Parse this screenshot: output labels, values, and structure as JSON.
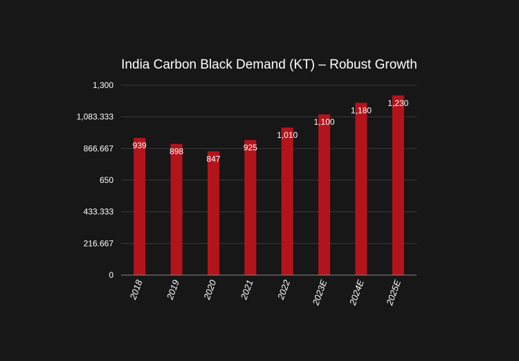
{
  "chart_data": {
    "type": "bar",
    "title": "India Carbon Black Demand (KT) – Robust Growth",
    "categories": [
      "2018",
      "2019",
      "2020",
      "2021",
      "2022",
      "2023E",
      "2024E",
      "2025E"
    ],
    "values": [
      939,
      898,
      847,
      925,
      1010,
      1100,
      1180,
      1230
    ],
    "data_labels": [
      "939",
      "898",
      "847",
      "925",
      "1,010",
      "1,100",
      "1,180",
      "1,230"
    ],
    "yticks": [
      0,
      216.667,
      433.333,
      650,
      866.667,
      1083.333,
      1300
    ],
    "ytick_labels": [
      "0",
      "216.667",
      "433.333",
      "650",
      "866.667",
      "1,083.333",
      "1,300"
    ],
    "ylim": [
      0,
      1300
    ],
    "xlabel": "",
    "ylabel": "",
    "grid": true,
    "legend": "none",
    "bar_color": "#b3141c",
    "background_color": "#171717"
  }
}
